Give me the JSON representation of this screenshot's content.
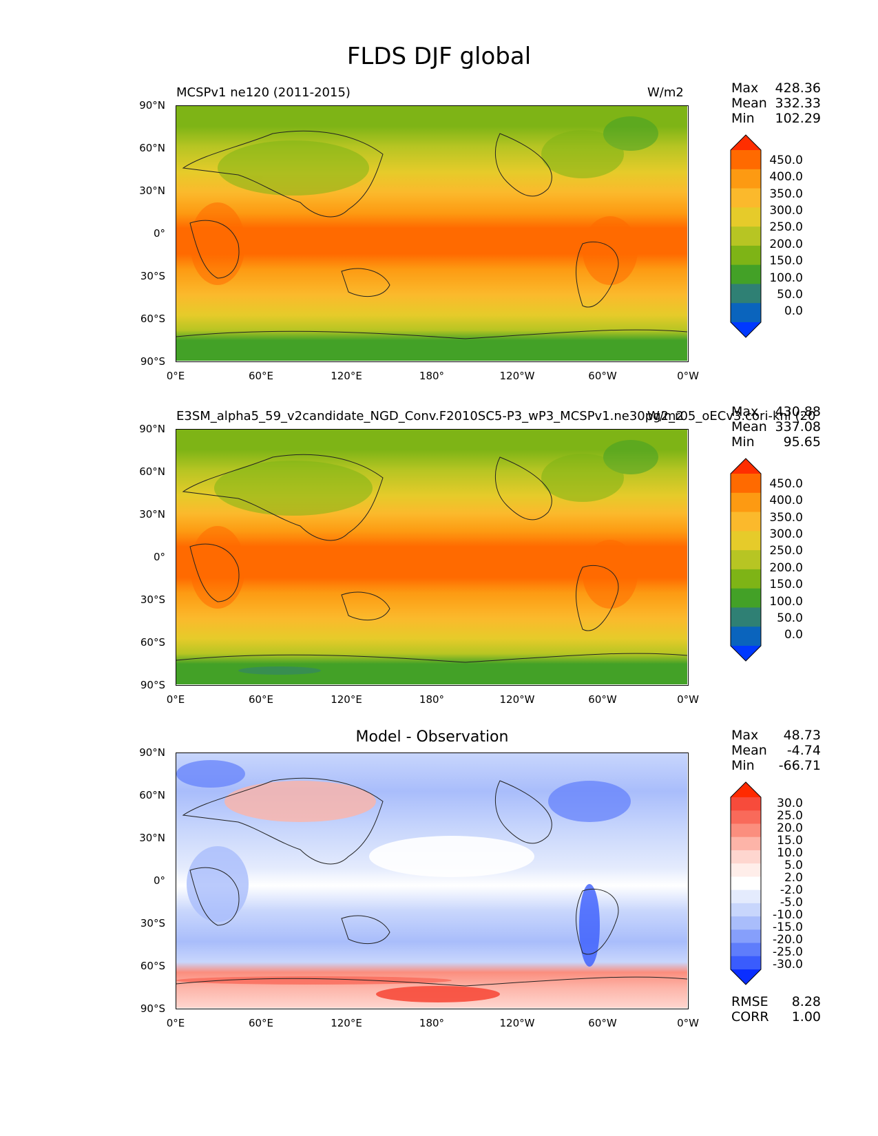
{
  "figure": {
    "title": "FLDS DJF global"
  },
  "axes": {
    "lat_labels": [
      "90°N",
      "60°N",
      "30°N",
      "0°",
      "30°S",
      "60°S",
      "90°S"
    ],
    "lon_labels": [
      "0°E",
      "60°E",
      "120°E",
      "180°",
      "120°W",
      "60°W",
      "0°W"
    ]
  },
  "panel1": {
    "title_left": "MCSPv1 ne120 (2011-2015)",
    "title_right": "W/m2",
    "stats": {
      "max_label": "Max",
      "max": "428.36",
      "mean_label": "Mean",
      "mean": "332.33",
      "min_label": "Min",
      "min": "102.29"
    },
    "colorbar": {
      "labels": [
        "450.0",
        "400.0",
        "350.0",
        "300.0",
        "250.0",
        "200.0",
        "150.0",
        "100.0",
        "50.0",
        "0.0"
      ],
      "colors": [
        "#ff2e00",
        "#ff6a00",
        "#fd9a12",
        "#fbb92c",
        "#e6cb2a",
        "#b7c523",
        "#7eb416",
        "#43a127",
        "#2f8074",
        "#0a64bd",
        "#0039ff"
      ]
    }
  },
  "panel2": {
    "title_left": "E3SM_alpha5_59_v2candidate_NGD_Conv.F2010SC5-P3_wP3_MCSPv1.ne30pg2_r05_oECv3.cori-knl (20",
    "title_right": "W/m2",
    "stats": {
      "max_label": "Max",
      "max": "430.88",
      "mean_label": "Mean",
      "mean": "337.08",
      "min_label": "Min",
      "min": "95.65"
    },
    "colorbar": {
      "labels": [
        "450.0",
        "400.0",
        "350.0",
        "300.0",
        "250.0",
        "200.0",
        "150.0",
        "100.0",
        "50.0",
        "0.0"
      ],
      "colors": [
        "#ff2e00",
        "#ff6a00",
        "#fd9a12",
        "#fbb92c",
        "#e6cb2a",
        "#b7c523",
        "#7eb416",
        "#43a127",
        "#2f8074",
        "#0a64bd",
        "#0039ff"
      ]
    }
  },
  "panel3": {
    "title": "Model - Observation",
    "stats": {
      "max_label": "Max",
      "max": "48.73",
      "mean_label": "Mean",
      "mean": "-4.74",
      "min_label": "Min",
      "min": "-66.71"
    },
    "metrics": {
      "rmse_label": "RMSE",
      "rmse": "8.28",
      "corr_label": "CORR",
      "corr": "1.00"
    },
    "colorbar": {
      "labels": [
        "30.0",
        "25.0",
        "20.0",
        "15.0",
        "10.0",
        "5.0",
        "2.0",
        "-2.0",
        "-5.0",
        "-10.0",
        "-15.0",
        "-20.0",
        "-25.0",
        "-30.0"
      ],
      "colors": [
        "#ff2a00",
        "#f74b3b",
        "#f96a5a",
        "#fb8e7e",
        "#fdb4a8",
        "#fed6cf",
        "#ffeeea",
        "#ffffff",
        "#e4ebfd",
        "#c8d6fc",
        "#a9bdfb",
        "#869ffb",
        "#5f7dfb",
        "#3a5cfd",
        "#0a2eff"
      ]
    }
  }
}
